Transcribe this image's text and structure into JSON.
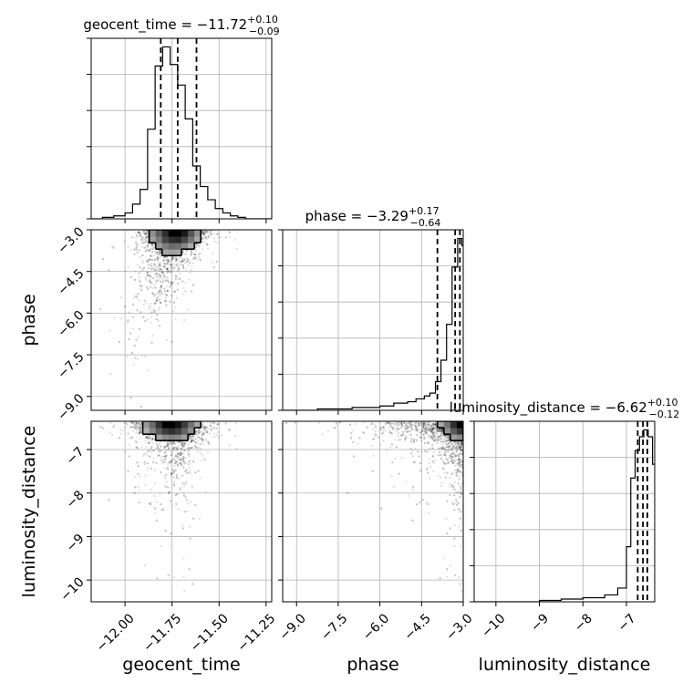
{
  "chart_data": {
    "type": "corner",
    "parameters": [
      "geocent_time",
      "phase",
      "luminosity_distance"
    ],
    "titles": [
      {
        "param": "geocent_time",
        "prefix": "geocent_time = ",
        "median": "−11.72",
        "plus": "+0.10",
        "minus": "−0.09"
      },
      {
        "param": "phase",
        "prefix": "phase = ",
        "median": "−3.29",
        "plus": "+0.17",
        "minus": "−0.64"
      },
      {
        "param": "luminosity_distance",
        "prefix": "luminosity_distance = ",
        "median": "−6.62",
        "plus": "+0.10",
        "minus": "−0.12"
      }
    ],
    "ranges": {
      "geocent_time": [
        -12.18,
        -11.22
      ],
      "phase": [
        -9.5,
        -3.0
      ],
      "luminosity_distance": [
        -10.5,
        -6.35
      ]
    },
    "ticks": {
      "geocent_time": [
        {
          "v": -12.0,
          "label": "−12.00"
        },
        {
          "v": -11.75,
          "label": "−11.75"
        },
        {
          "v": -11.5,
          "label": "−11.50"
        },
        {
          "v": -11.25,
          "label": "−11.25"
        }
      ],
      "phase": [
        {
          "v": -9.0,
          "label": "−9.0"
        },
        {
          "v": -7.5,
          "label": "−7.5"
        },
        {
          "v": -6.0,
          "label": "−6.0"
        },
        {
          "v": -4.5,
          "label": "−4.5"
        },
        {
          "v": -3.0,
          "label": "−3.0"
        }
      ],
      "luminosity_distance": [
        {
          "v": -10,
          "label": "−10"
        },
        {
          "v": -9,
          "label": "−9"
        },
        {
          "v": -8,
          "label": "−8"
        },
        {
          "v": -7,
          "label": "−7"
        }
      ]
    },
    "quantiles": {
      "geocent_time": [
        -11.81,
        -11.72,
        -11.62
      ],
      "phase": [
        -3.93,
        -3.29,
        -3.12
      ],
      "luminosity_distance": [
        -6.74,
        -6.62,
        -6.52
      ]
    },
    "histograms": {
      "geocent_time": {
        "edges": [
          -12.18,
          -12.12,
          -12.06,
          -12.0,
          -11.96,
          -11.92,
          -11.88,
          -11.84,
          -11.8,
          -11.76,
          -11.72,
          -11.68,
          -11.64,
          -11.6,
          -11.56,
          -11.52,
          -11.48,
          -11.44,
          -11.4,
          -11.36,
          -11.3,
          -11.22
        ],
        "counts": [
          0,
          1,
          2,
          4,
          10,
          20,
          61,
          104,
          117,
          105,
          91,
          68,
          36,
          22,
          13,
          7,
          4,
          2,
          1,
          0,
          0
        ]
      },
      "phase": {
        "edges": [
          -9.5,
          -8.25,
          -7.0,
          -6.0,
          -5.5,
          -5.0,
          -4.7,
          -4.4,
          -4.2,
          -4.0,
          -3.8,
          -3.6,
          -3.4,
          -3.2,
          -3.05,
          -3.0
        ],
        "counts": [
          0,
          1,
          2,
          3,
          5,
          6,
          8,
          10,
          12,
          20,
          35,
          60,
          100,
          120,
          115
        ]
      },
      "luminosity_distance": {
        "edges": [
          -10.5,
          -9.0,
          -8.5,
          -8.0,
          -7.5,
          -7.2,
          -7.0,
          -6.9,
          -6.8,
          -6.7,
          -6.6,
          -6.5,
          -6.4,
          -6.35
        ],
        "counts": [
          0,
          1,
          2,
          3,
          5,
          10,
          40,
          90,
          110,
          120,
          125,
          120,
          100
        ]
      }
    },
    "xlabels": [
      "geocent_time",
      "phase",
      "luminosity_distance"
    ],
    "ylabels": [
      "phase",
      "luminosity_distance"
    ],
    "grid": true
  }
}
